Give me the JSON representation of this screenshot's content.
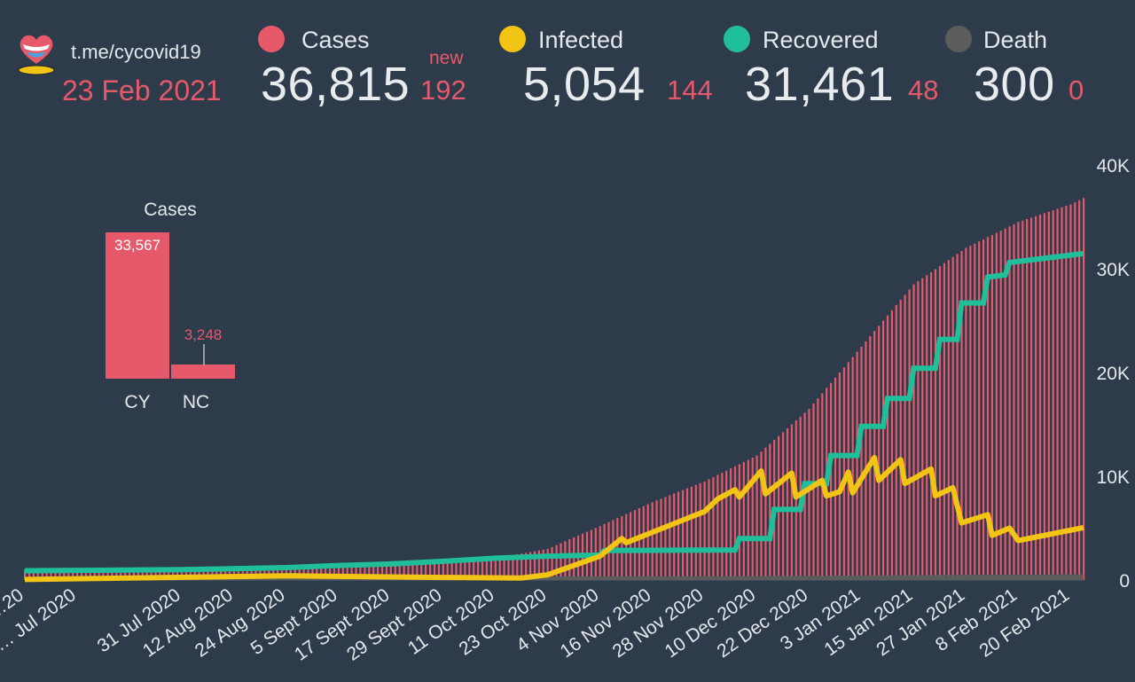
{
  "header": {
    "channel": "t.me/cycovid19",
    "date": "23 Feb 2021",
    "new_label": "new",
    "stats": [
      {
        "label": "Cases",
        "value": "36,815",
        "new": "192",
        "color": "#e6596b"
      },
      {
        "label": "Infected",
        "value": "5,054",
        "new": "144",
        "color": "#f2c515"
      },
      {
        "label": "Recovered",
        "value": "31,461",
        "new": "48",
        "color": "#1fbf9a"
      },
      {
        "label": "Death",
        "value": "300",
        "new": "0",
        "color": "#5c5c5c"
      }
    ]
  },
  "colors": {
    "background": "#2d3b4b",
    "cases": "#e6596b",
    "infected": "#f2c515",
    "recovered": "#1fbf9a",
    "death": "#5c5c5c",
    "text": "#e4e8ec"
  },
  "chart_data": [
    {
      "type": "bar",
      "title": "Cases",
      "categories": [
        "CY",
        "NC"
      ],
      "values": [
        33567,
        3248
      ],
      "value_labels": [
        "33,567",
        "3,248"
      ]
    },
    {
      "type": "bar+line",
      "ylim": [
        0,
        40000
      ],
      "y_ticks": [
        "0",
        "10K",
        "20K",
        "30K",
        "40K"
      ],
      "y_tick_values": [
        0,
        10000,
        20000,
        30000,
        40000
      ],
      "y_axis_side": "right",
      "x_start": "2020-06-25",
      "x_end": "2021-02-23",
      "x_ticks": [
        {
          "label": "…20",
          "date": "2020-06-25"
        },
        {
          "label": "… Jul 2020",
          "date": "2020-07-07"
        },
        {
          "label": "31 Jul 2020",
          "date": "2020-07-31"
        },
        {
          "label": "12 Aug 2020",
          "date": "2020-08-12"
        },
        {
          "label": "24 Aug 2020",
          "date": "2020-08-24"
        },
        {
          "label": "5 Sept 2020",
          "date": "2020-09-05"
        },
        {
          "label": "17 Sept 2020",
          "date": "2020-09-17"
        },
        {
          "label": "29 Sept 2020",
          "date": "2020-09-29"
        },
        {
          "label": "11 Oct 2020",
          "date": "2020-10-11"
        },
        {
          "label": "23 Oct 2020",
          "date": "2020-10-23"
        },
        {
          "label": "4 Nov 2020",
          "date": "2020-11-04"
        },
        {
          "label": "16 Nov 2020",
          "date": "2020-11-16"
        },
        {
          "label": "28 Nov 2020",
          "date": "2020-11-28"
        },
        {
          "label": "10 Dec 2020",
          "date": "2020-12-10"
        },
        {
          "label": "22 Dec 2020",
          "date": "2020-12-22"
        },
        {
          "label": "3 Jan 2021",
          "date": "2021-01-03"
        },
        {
          "label": "15 Jan 2021",
          "date": "2021-01-15"
        },
        {
          "label": "27 Jan 2021",
          "date": "2021-01-27"
        },
        {
          "label": "8 Feb 2021",
          "date": "2021-02-08"
        },
        {
          "label": "20 Feb 2021",
          "date": "2021-02-20"
        }
      ],
      "series": [
        {
          "name": "Cases",
          "kind": "bars",
          "points": [
            [
              "2020-06-25",
              990
            ],
            [
              "2020-07-10",
              1040
            ],
            [
              "2020-07-31",
              1140
            ],
            [
              "2020-08-12",
              1280
            ],
            [
              "2020-08-24",
              1440
            ],
            [
              "2020-09-05",
              1600
            ],
            [
              "2020-09-17",
              1750
            ],
            [
              "2020-09-29",
              1880
            ],
            [
              "2020-10-11",
              2100
            ],
            [
              "2020-10-23",
              3000
            ],
            [
              "2020-11-04",
              5200
            ],
            [
              "2020-11-16",
              7500
            ],
            [
              "2020-11-28",
              9500
            ],
            [
              "2020-12-10",
              12000
            ],
            [
              "2020-12-22",
              16500
            ],
            [
              "2021-01-03",
              22500
            ],
            [
              "2021-01-15",
              28500
            ],
            [
              "2021-01-27",
              32000
            ],
            [
              "2021-02-08",
              34500
            ],
            [
              "2021-02-20",
              36200
            ],
            [
              "2021-02-23",
              36815
            ]
          ]
        },
        {
          "name": "Recovered",
          "kind": "step-line",
          "points": [
            [
              "2020-06-25",
              900
            ],
            [
              "2020-07-31",
              1000
            ],
            [
              "2020-08-24",
              1200
            ],
            [
              "2020-09-05",
              1400
            ],
            [
              "2020-09-17",
              1550
            ],
            [
              "2020-09-29",
              1800
            ],
            [
              "2020-10-11",
              2100
            ],
            [
              "2020-10-23",
              2300
            ],
            [
              "2020-11-04",
              2400
            ],
            [
              "2020-11-05",
              2850
            ],
            [
              "2020-12-05",
              2900
            ],
            [
              "2020-12-06",
              4000
            ],
            [
              "2020-12-13",
              4000
            ],
            [
              "2020-12-14",
              6800
            ],
            [
              "2020-12-20",
              6800
            ],
            [
              "2020-12-21",
              9300
            ],
            [
              "2020-12-26",
              9300
            ],
            [
              "2020-12-27",
              12000
            ],
            [
              "2021-01-02",
              12000
            ],
            [
              "2021-01-03",
              14800
            ],
            [
              "2021-01-08",
              14800
            ],
            [
              "2021-01-09",
              17500
            ],
            [
              "2021-01-14",
              17500
            ],
            [
              "2021-01-15",
              20400
            ],
            [
              "2021-01-20",
              20400
            ],
            [
              "2021-01-21",
              23200
            ],
            [
              "2021-01-25",
              23200
            ],
            [
              "2021-01-26",
              26700
            ],
            [
              "2021-01-31",
              26700
            ],
            [
              "2021-02-01",
              29200
            ],
            [
              "2021-02-05",
              29400
            ],
            [
              "2021-02-06",
              30600
            ],
            [
              "2021-02-23",
              31461
            ]
          ]
        },
        {
          "name": "Infected",
          "kind": "line",
          "points": [
            [
              "2020-06-25",
              50
            ],
            [
              "2020-08-24",
              400
            ],
            [
              "2020-09-29",
              250
            ],
            [
              "2020-10-17",
              200
            ],
            [
              "2020-10-23",
              500
            ],
            [
              "2020-11-04",
              2300
            ],
            [
              "2020-11-09",
              4000
            ],
            [
              "2020-11-10",
              3600
            ],
            [
              "2020-11-28",
              6600
            ],
            [
              "2020-12-01",
              7800
            ],
            [
              "2020-12-05",
              8700
            ],
            [
              "2020-12-06",
              8000
            ],
            [
              "2020-12-11",
              10500
            ],
            [
              "2020-12-12",
              8300
            ],
            [
              "2020-12-18",
              10300
            ],
            [
              "2020-12-19",
              8000
            ],
            [
              "2020-12-25",
              9600
            ],
            [
              "2020-12-26",
              8100
            ],
            [
              "2020-12-29",
              8500
            ],
            [
              "2020-12-31",
              10400
            ],
            [
              "2021-01-01",
              8400
            ],
            [
              "2021-01-06",
              11800
            ],
            [
              "2021-01-07",
              9600
            ],
            [
              "2021-01-12",
              11600
            ],
            [
              "2021-01-13",
              9300
            ],
            [
              "2021-01-19",
              10700
            ],
            [
              "2021-01-20",
              8100
            ],
            [
              "2021-01-24",
              8900
            ],
            [
              "2021-01-26",
              5500
            ],
            [
              "2021-02-01",
              6300
            ],
            [
              "2021-02-02",
              4300
            ],
            [
              "2021-02-06",
              5000
            ],
            [
              "2021-02-08",
              3800
            ],
            [
              "2021-02-23",
              5054
            ]
          ]
        },
        {
          "name": "Death",
          "kind": "area",
          "points": [
            [
              "2020-06-25",
              20
            ],
            [
              "2020-12-01",
              100
            ],
            [
              "2021-02-23",
              300
            ]
          ]
        }
      ]
    }
  ]
}
